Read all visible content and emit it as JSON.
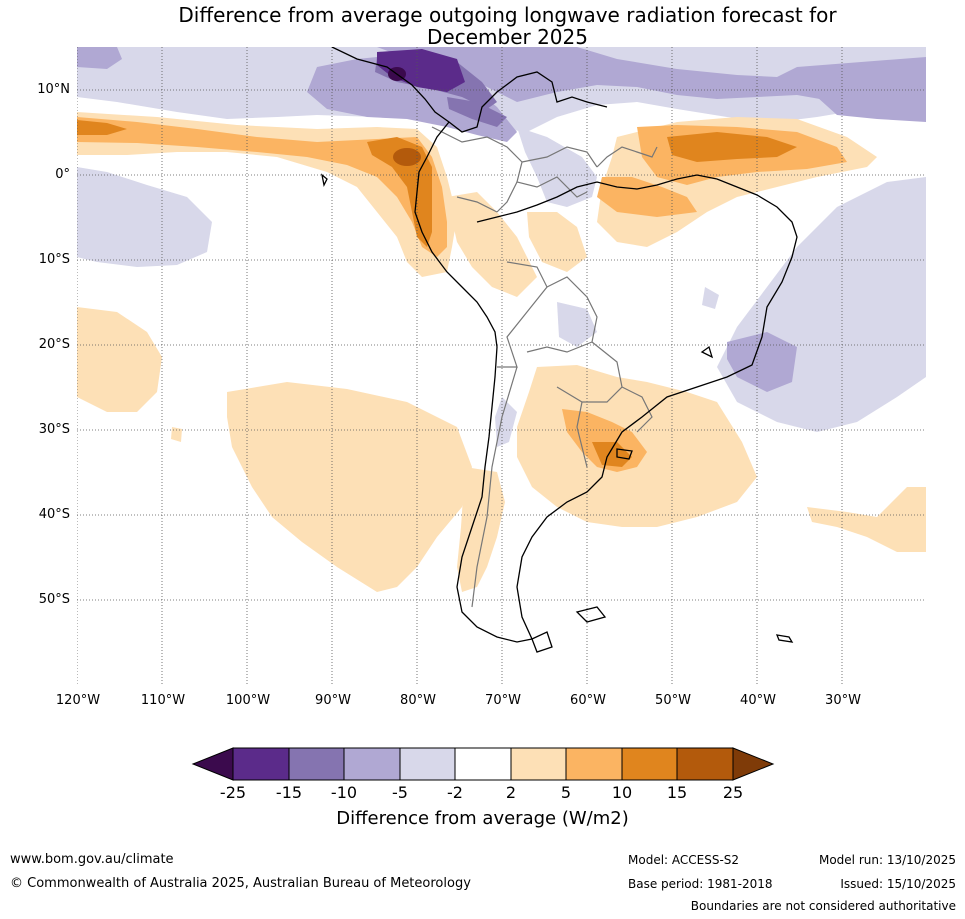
{
  "title": {
    "line1": "Difference from average outgoing longwave radiation forecast for",
    "line2": "December 2025"
  },
  "map": {
    "lat_labels": [
      "10°N",
      "0°",
      "10°S",
      "20°S",
      "30°S",
      "40°S",
      "50°S"
    ],
    "lon_labels": [
      "120°W",
      "110°W",
      "100°W",
      "90°W",
      "80°W",
      "70°W",
      "60°W",
      "50°W",
      "40°W",
      "30°W"
    ]
  },
  "colorbar": {
    "title": "Difference from average (W/m2)",
    "ticks": [
      "-25",
      "-15",
      "-10",
      "-5",
      "-2",
      "2",
      "5",
      "10",
      "15",
      "25"
    ],
    "colors": [
      "#3b0a4d",
      "#5b2b8a",
      "#8574b0",
      "#b0a8d3",
      "#d8d8ea",
      "#ffffff",
      "#fde0b6",
      "#fbb462",
      "#e0851e",
      "#b35a0c",
      "#7f3b08"
    ]
  },
  "footer": {
    "website": "www.bom.gov.au/climate",
    "copyright": "© Commonwealth of Australia 2025, Australian Bureau of Meteorology",
    "model": "Model: ACCESS-S2",
    "base_period": "Base period: 1981-2018",
    "model_run": "Model run: 13/10/2025",
    "issued": "Issued: 15/10/2025",
    "disclaimer": "Boundaries are not considered authoritative"
  }
}
